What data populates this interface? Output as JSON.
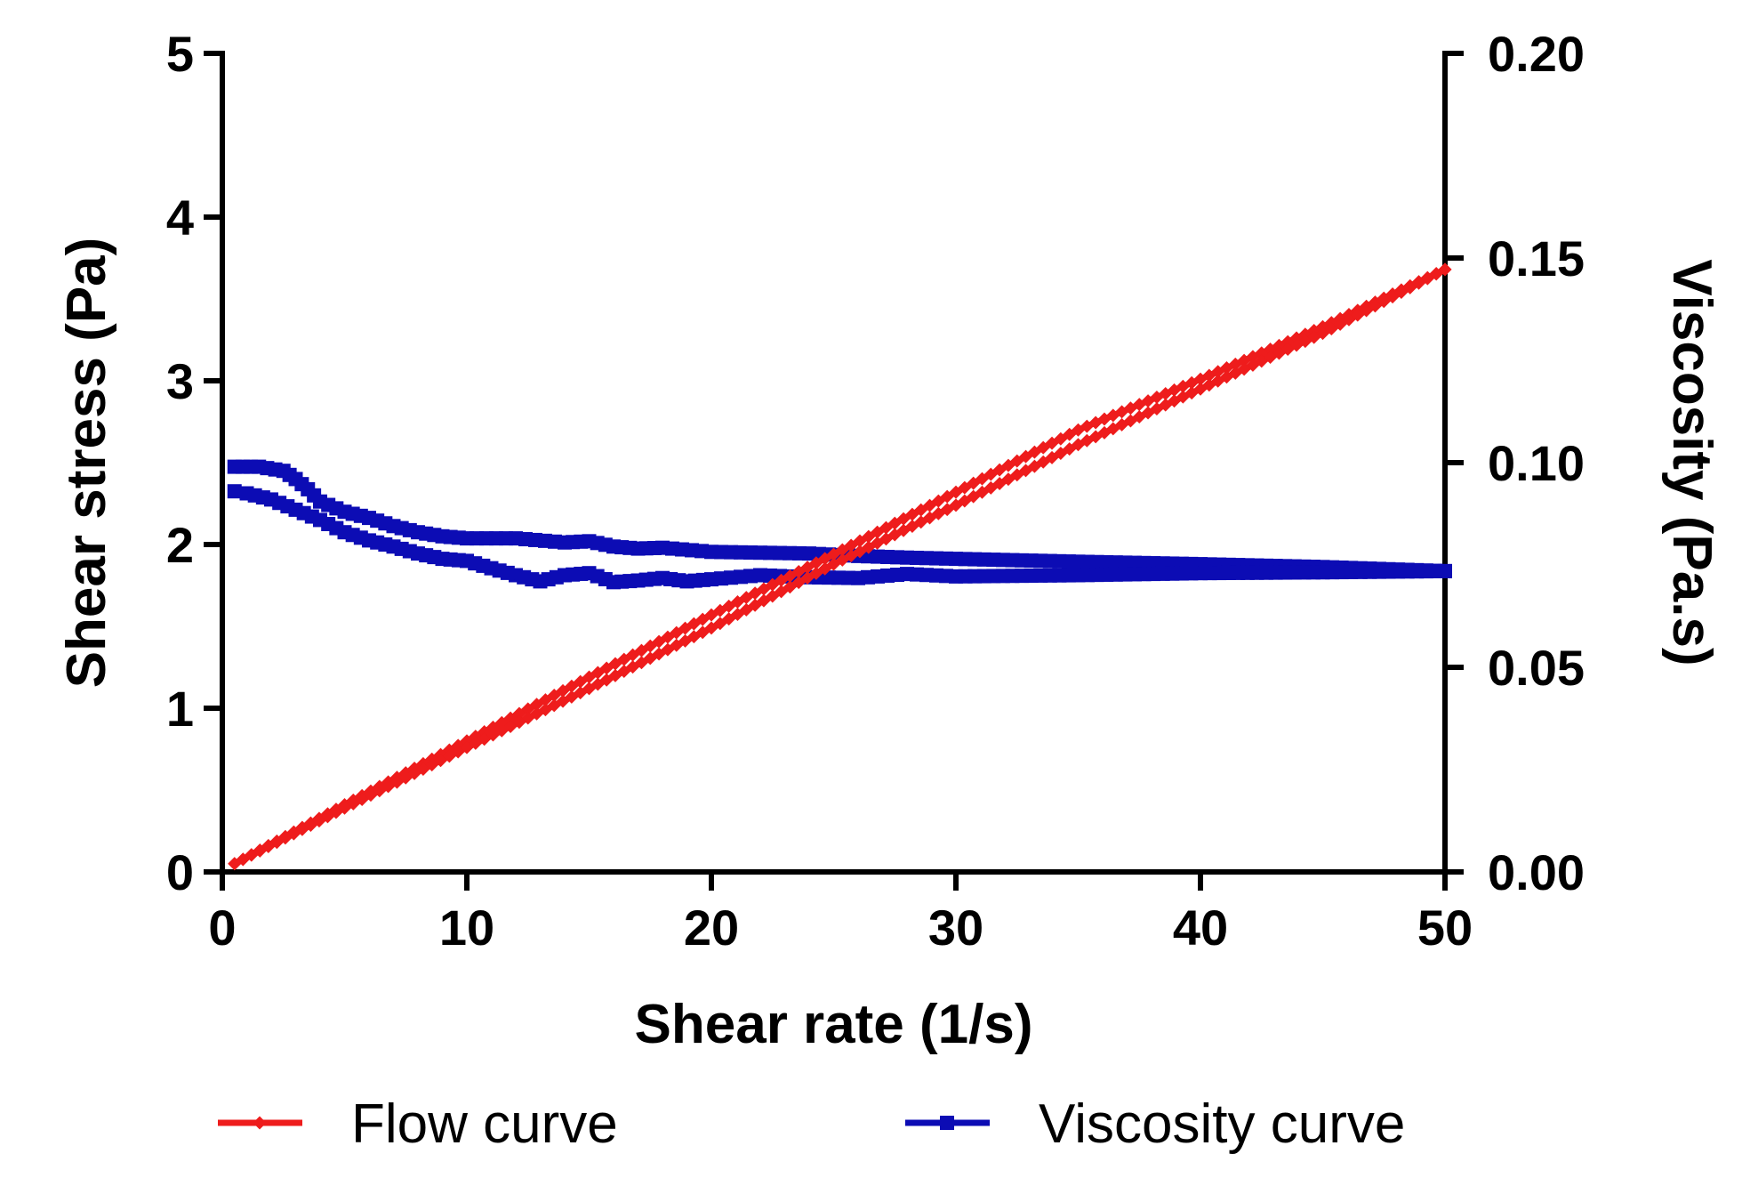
{
  "chart_data": {
    "type": "line",
    "title": "",
    "xlabel": "Shear rate (1/s)",
    "ylabel_left": "Shear stress (Pa)",
    "ylabel_right": "Viscosity (Pa.s)",
    "xlim": [
      0,
      50
    ],
    "ylim_left": [
      0,
      5
    ],
    "ylim_right": [
      0,
      0.2
    ],
    "x_ticks": [
      0,
      10,
      20,
      30,
      40,
      50
    ],
    "y_left_ticks": [
      0,
      1,
      2,
      3,
      4,
      5
    ],
    "y_right_ticks": [
      "0.00",
      "0.05",
      "0.10",
      "0.15",
      "0.20"
    ],
    "grid": false,
    "legend_position": "bottom",
    "series": [
      {
        "name": "Flow curve",
        "axis": "left",
        "color": "#ee1c1c",
        "marker": "diamond",
        "branches": [
          {
            "x": [
              0.5,
              5,
              10,
              15,
              20,
              25,
              30,
              35,
              40,
              45,
              50
            ],
            "y": [
              0.05,
              0.41,
              0.8,
              1.19,
              1.57,
              1.94,
              2.32,
              2.7,
              3.01,
              3.33,
              3.68
            ]
          },
          {
            "x": [
              50,
              45,
              40,
              35,
              30,
              25,
              20,
              15,
              10,
              5,
              0.5
            ],
            "y": [
              3.68,
              3.29,
              2.95,
              2.61,
              2.24,
              1.88,
              1.49,
              1.12,
              0.76,
              0.39,
              0.05
            ]
          }
        ]
      },
      {
        "name": "Viscosity curve",
        "axis": "right",
        "color": "#0c0cb4",
        "marker": "square",
        "branches": [
          {
            "x": [
              0.5,
              1.5,
              2.5,
              3.0,
              3.5,
              4.0,
              5,
              6,
              7,
              8,
              9,
              10,
              12,
              14,
              15,
              16,
              17,
              18,
              20,
              22,
              24,
              26,
              28,
              30,
              35,
              40,
              45,
              50
            ],
            "y": [
              0.099,
              0.099,
              0.098,
              0.096,
              0.0935,
              0.0905,
              0.088,
              0.0865,
              0.0845,
              0.083,
              0.082,
              0.0815,
              0.0815,
              0.0805,
              0.0808,
              0.0795,
              0.079,
              0.0792,
              0.0782,
              0.078,
              0.0778,
              0.0772,
              0.0768,
              0.0765,
              0.0758,
              0.0752,
              0.0745,
              0.0735
            ]
          },
          {
            "x": [
              50,
              45,
              40,
              35,
              30,
              28,
              26,
              24,
              22,
              20,
              19,
              18,
              17,
              16,
              15,
              14,
              13,
              12,
              11,
              10,
              9,
              8,
              7,
              6,
              5,
              4,
              3,
              2,
              1,
              0.5
            ],
            "y": [
              0.0735,
              0.0732,
              0.073,
              0.0725,
              0.0722,
              0.0728,
              0.0718,
              0.072,
              0.0725,
              0.0715,
              0.071,
              0.0718,
              0.0712,
              0.0708,
              0.073,
              0.0725,
              0.071,
              0.0725,
              0.0742,
              0.076,
              0.0765,
              0.0778,
              0.0795,
              0.081,
              0.083,
              0.086,
              0.0885,
              0.091,
              0.0925,
              0.093
            ]
          }
        ]
      }
    ]
  }
}
